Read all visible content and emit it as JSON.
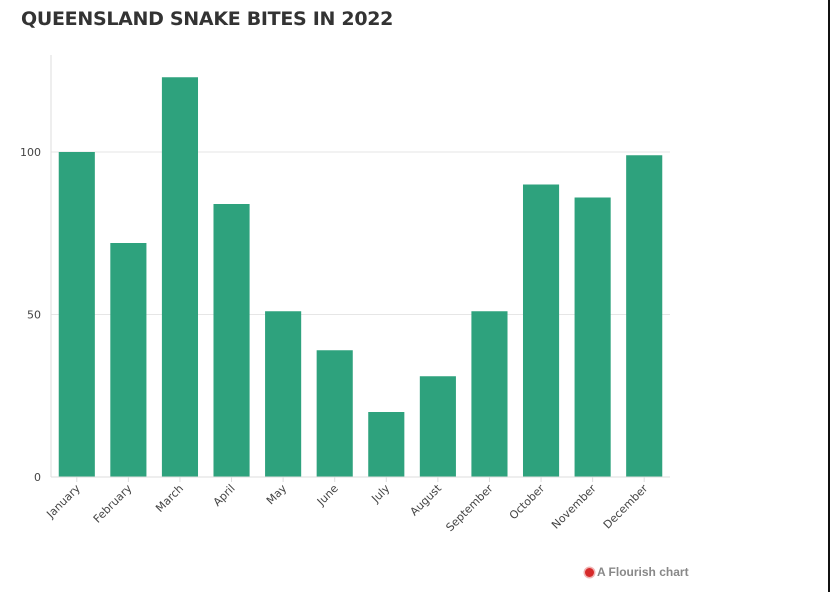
{
  "title": "QUEENSLAND SNAKE BITES IN 2022",
  "footer": {
    "label": "A Flourish chart",
    "icon": "flourish-logo-icon"
  },
  "colors": {
    "bar": "#2ea27d",
    "grid": "#e6e6e6",
    "axis": "#dddddd",
    "text": "#444444",
    "title": "#333333",
    "footer": "#888888",
    "logo": "#d62a2a"
  },
  "chart_data": {
    "type": "bar",
    "title": "QUEENSLAND SNAKE BITES IN 2022",
    "xlabel": "",
    "ylabel": "",
    "categories": [
      "January",
      "February",
      "March",
      "April",
      "May",
      "June",
      "July",
      "August",
      "September",
      "October",
      "November",
      "December"
    ],
    "values": [
      100,
      72,
      123,
      84,
      51,
      39,
      20,
      31,
      51,
      90,
      86,
      99
    ],
    "ylim": [
      0,
      123
    ],
    "yticks": [
      0,
      50,
      100
    ],
    "ytick_labels": [
      "0",
      "50",
      "100"
    ],
    "grid": true,
    "legend": "none"
  }
}
